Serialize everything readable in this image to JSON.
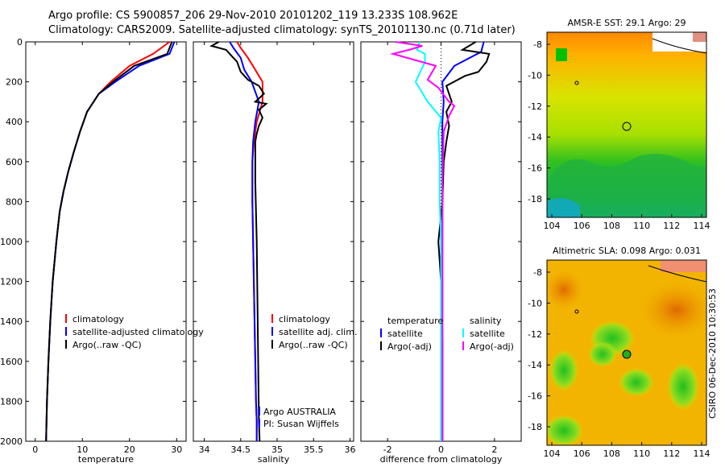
{
  "header": {
    "line1": "Argo profile: CS 5900857_206 29-Nov-2010 20101202_119 13.233S 108.962E",
    "line2": "Climatology: CARS2009. Satellite-adjusted climatology: synTS_20101130.nc (0.71d later)"
  },
  "side_label": "CSIRO 06-Dec-2010 10:30:53",
  "colors": {
    "climatology": "#ff0000",
    "satellite": "#0000ff",
    "argo": "#000000",
    "cyan": "#00ffff",
    "magenta": "#ff00ff"
  },
  "chart_data": [
    {
      "type": "line",
      "id": "temperature",
      "xlabel": "temperature",
      "xlim": [
        -2,
        32
      ],
      "xticks": [
        0,
        10,
        20,
        30
      ],
      "ylim": [
        2000,
        0
      ],
      "yticks": [
        0,
        200,
        400,
        600,
        800,
        1000,
        1200,
        1400,
        1600,
        1800,
        2000
      ],
      "legend": [
        "climatology",
        "satellite-adjusted climatology",
        "Argo(..raw -QC)"
      ],
      "series": [
        {
          "name": "climatology",
          "color": "#ff0000",
          "x": [
            28.5,
            25,
            20,
            16,
            13.5,
            11,
            9.5,
            8.2,
            7,
            6,
            5.2,
            4.5,
            3.7,
            3.2,
            2.8,
            2.5,
            2.3
          ],
          "y": [
            0,
            60,
            120,
            200,
            260,
            350,
            450,
            550,
            650,
            750,
            850,
            1000,
            1200,
            1400,
            1600,
            1800,
            2000
          ]
        },
        {
          "name": "satellite",
          "color": "#0000ff",
          "x": [
            29.5,
            28.5,
            22,
            17,
            13.5,
            11,
            9.5,
            8.2,
            7,
            6,
            5.2,
            4.5,
            3.7,
            3.2,
            2.8,
            2.5,
            2.3
          ],
          "y": [
            0,
            60,
            120,
            200,
            260,
            350,
            450,
            550,
            650,
            750,
            850,
            1000,
            1200,
            1400,
            1600,
            1800,
            2000
          ]
        },
        {
          "name": "argo",
          "color": "#000000",
          "x": [
            29,
            28,
            21,
            16.5,
            13.5,
            11,
            9.5,
            8.2,
            7,
            6,
            5.2,
            4.5,
            3.7,
            3.2,
            2.8,
            2.5,
            2.3
          ],
          "y": [
            0,
            60,
            120,
            200,
            260,
            350,
            450,
            550,
            650,
            750,
            850,
            1000,
            1200,
            1400,
            1600,
            1800,
            2000
          ]
        }
      ]
    },
    {
      "type": "line",
      "id": "salinity",
      "xlabel": "salinity",
      "xlim": [
        33.85,
        36.05
      ],
      "xticks": [
        34,
        34.5,
        35,
        35.5,
        36
      ],
      "ylim": [
        2000,
        0
      ],
      "yticks": [
        0,
        200,
        400,
        600,
        800,
        1000,
        1200,
        1400,
        1600,
        1800,
        2000
      ],
      "legend": [
        "climatology",
        "satellite adj. clim.",
        "Argo(..raw -QC)"
      ],
      "annotations": [
        "Argo AUSTRALIA",
        "PI: Susan Wijffels"
      ],
      "series": [
        {
          "name": "climatology",
          "color": "#ff0000",
          "x": [
            34.45,
            34.5,
            34.6,
            34.7,
            34.8,
            34.8,
            34.72,
            34.68,
            34.66,
            34.66,
            34.67,
            34.68,
            34.69,
            34.7,
            34.71,
            34.72,
            34.72
          ],
          "y": [
            0,
            30,
            80,
            140,
            200,
            300,
            400,
            500,
            600,
            800,
            1000,
            1200,
            1400,
            1600,
            1800,
            1900,
            2000
          ]
        },
        {
          "name": "satellite",
          "color": "#0000ff",
          "x": [
            34.35,
            34.4,
            34.5,
            34.55,
            34.65,
            34.75,
            34.7,
            34.67,
            34.66,
            34.66,
            34.67,
            34.68,
            34.69,
            34.7,
            34.71,
            34.72,
            34.72
          ],
          "y": [
            0,
            30,
            80,
            140,
            200,
            300,
            400,
            500,
            600,
            800,
            1000,
            1200,
            1400,
            1600,
            1800,
            1900,
            2000
          ]
        },
        {
          "name": "argo",
          "color": "#000000",
          "x": [
            34.2,
            34.1,
            34.3,
            34.35,
            34.45,
            34.5,
            34.6,
            34.75,
            34.82,
            34.7,
            34.85,
            34.75,
            34.8,
            34.75,
            34.72,
            34.7,
            34.7,
            34.72,
            34.73,
            34.74,
            34.75,
            34.76
          ],
          "y": [
            0,
            20,
            40,
            60,
            100,
            150,
            190,
            220,
            260,
            300,
            310,
            340,
            380,
            420,
            460,
            500,
            700,
            1000,
            1300,
            1600,
            1900,
            2000
          ]
        }
      ]
    },
    {
      "type": "line",
      "id": "difference",
      "xlabel": "difference from climatology",
      "xlim": [
        -3,
        3
      ],
      "xticks": [
        -2,
        0,
        2
      ],
      "ylim": [
        2000,
        0
      ],
      "yticks": [
        0,
        200,
        400,
        600,
        800,
        1000,
        1200,
        1400,
        1600,
        1800,
        2000
      ],
      "legend_left_title": "temperature",
      "legend_right_title": "salinity",
      "legend": [
        "satellite",
        "Argo(-adj)",
        "satellite",
        "Argo(-adj)"
      ],
      "series": [
        {
          "name": "temp-satellite",
          "color": "#0000ff",
          "x": [
            1.6,
            1.5,
            0.5,
            0.05,
            0.1,
            0.05,
            0.05,
            0.05,
            0.05,
            0.05,
            0.05,
            0.05,
            0.05,
            0.05
          ],
          "y": [
            0,
            50,
            120,
            200,
            300,
            400,
            500,
            700,
            900,
            1100,
            1300,
            1600,
            1800,
            2000
          ]
        },
        {
          "name": "temp-argo",
          "color": "#000000",
          "x": [
            1.3,
            0.8,
            1.8,
            1.7,
            1.4,
            0.9,
            0.2,
            0.4,
            0.2,
            0.3,
            0.2,
            0.1,
            0.05,
            -0.1,
            0.0,
            0.05,
            0.05
          ],
          "y": [
            0,
            40,
            60,
            100,
            150,
            170,
            220,
            300,
            350,
            420,
            500,
            600,
            800,
            1000,
            1200,
            1500,
            2000
          ]
        },
        {
          "name": "sal-satellite",
          "color": "#00ffff",
          "x": [
            -0.8,
            -0.9,
            -0.6,
            -0.6,
            -0.95,
            -0.5,
            0.0,
            -0.1,
            -0.05,
            -0.05,
            0.0,
            0.0,
            0.0,
            0.0
          ],
          "y": [
            0,
            40,
            60,
            100,
            200,
            300,
            380,
            450,
            600,
            800,
            1000,
            1400,
            1800,
            2000
          ]
        },
        {
          "name": "sal-argo",
          "color": "#ff00ff",
          "x": [
            -1.7,
            -0.7,
            -1.2,
            -1.8,
            -0.2,
            -0.5,
            -0.1,
            0.3,
            0.5,
            0.3,
            0.1,
            0.05,
            0.05,
            0.05
          ],
          "y": [
            0,
            20,
            40,
            60,
            120,
            190,
            230,
            300,
            320,
            370,
            450,
            700,
            1200,
            2000
          ]
        }
      ]
    }
  ],
  "maps": [
    {
      "title": "AMSR-E SST: 29.1 Argo: 29",
      "xticks": [
        "104",
        "106",
        "108",
        "110",
        "112",
        "114"
      ],
      "yticks": [
        "-8",
        "-10",
        "-12",
        "-14",
        "-16",
        "-18"
      ]
    },
    {
      "title": "Altimetric SLA: 0.098 Argo: 0.031",
      "xticks": [
        "104",
        "106",
        "108",
        "110",
        "112",
        "114"
      ],
      "yticks": [
        "-8",
        "-10",
        "-12",
        "-14",
        "-16",
        "-18"
      ]
    }
  ]
}
